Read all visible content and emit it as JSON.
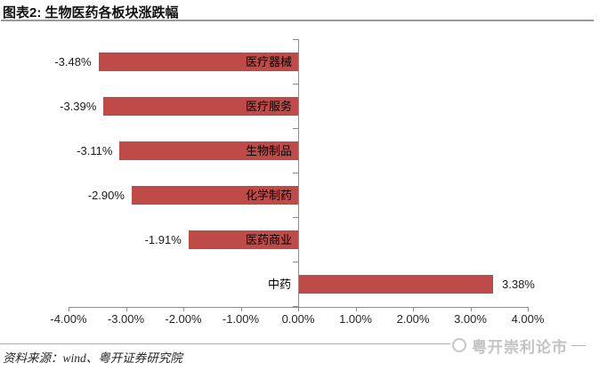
{
  "title": "图表2: 生物医药各板块涨跌幅",
  "chart_data": {
    "type": "bar",
    "orientation": "horizontal",
    "title": "图表2: 生物医药各板块涨跌幅",
    "categories": [
      "医疗器械",
      "医疗服务",
      "生物制品",
      "化学制药",
      "医药商业",
      "中药"
    ],
    "values": [
      -3.48,
      -3.39,
      -3.11,
      -2.9,
      -1.91,
      3.38
    ],
    "value_labels": [
      "-3.48%",
      "-3.39%",
      "-3.11%",
      "-2.90%",
      "-1.91%",
      "3.38%"
    ],
    "x_ticks": [
      "-4.00%",
      "-3.00%",
      "-2.00%",
      "-1.00%",
      "0.00%",
      "1.00%",
      "2.00%",
      "3.00%",
      "4.00%"
    ],
    "xlim": [
      -4,
      4
    ],
    "grid": false,
    "legend": "none",
    "bar_color": "#be4b48",
    "axis_color": "#8c8c8c",
    "category_label_position": "inside-end-for-negative, outside-axis-for-positive",
    "value_label_position": "outside-end"
  },
  "footer": {
    "source": "资料来源：wind、粤开证券研究院",
    "watermark": "粤开崇利论市",
    "watermark_icon": "circle-logo-icon"
  },
  "colors": {
    "bar": "#be4b48",
    "axis": "#8c8c8c",
    "title_rule": "#9a9a9a",
    "footer_rule": "#b3b3b3",
    "watermark_text": "#c3c3c3",
    "text": "#1a1a1a"
  }
}
